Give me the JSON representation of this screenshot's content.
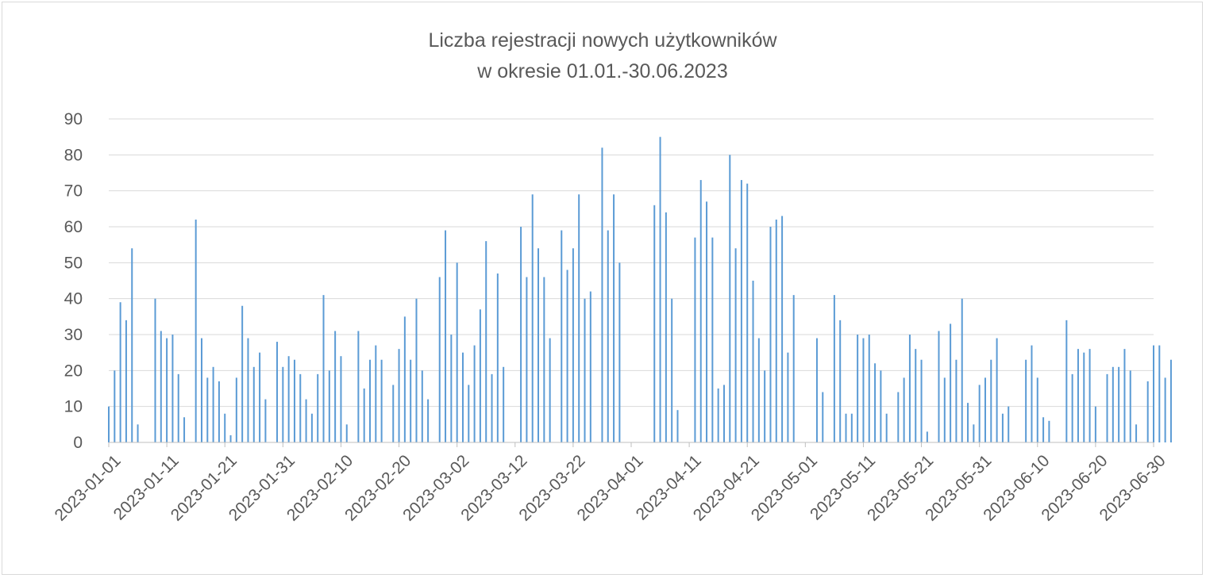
{
  "chart_data": {
    "type": "bar",
    "title": [
      "Liczba rejestracji nowych użytkowników",
      "w okresie 01.01.-30.06.2023"
    ],
    "xlabel": "",
    "ylabel": "",
    "start_date": "2023-01-01",
    "end_date": "2023-06-30",
    "ylim": [
      0,
      90
    ],
    "yticks": [
      0,
      10,
      20,
      30,
      40,
      50,
      60,
      70,
      80,
      90
    ],
    "xticks": [
      "2023-01-01",
      "2023-01-11",
      "2023-01-21",
      "2023-01-31",
      "2023-02-10",
      "2023-02-20",
      "2023-03-02",
      "2023-03-12",
      "2023-03-22",
      "2023-04-01",
      "2023-04-11",
      "2023-04-21",
      "2023-05-01",
      "2023-05-11",
      "2023-05-21",
      "2023-05-31",
      "2023-06-10",
      "2023-06-20",
      "2023-06-30"
    ],
    "grid": true,
    "legend": "none",
    "bar_color": "#5b9bd5",
    "series": [
      {
        "values": [
          10,
          20,
          39,
          34,
          54,
          5,
          0,
          0,
          40,
          31,
          29,
          30,
          19,
          7,
          0,
          62,
          29,
          18,
          21,
          17,
          8,
          2,
          18,
          38,
          29,
          21,
          25,
          12,
          0,
          28,
          21,
          24,
          23,
          19,
          12,
          8,
          19,
          41,
          20,
          31,
          24,
          5,
          0,
          31,
          15,
          23,
          27,
          23,
          0,
          16,
          26,
          35,
          23,
          40,
          20,
          12,
          0,
          46,
          59,
          30,
          50,
          25,
          16,
          27,
          37,
          56,
          19,
          47,
          21,
          0,
          0,
          60,
          46,
          69,
          54,
          46,
          29,
          0,
          59,
          48,
          54,
          69,
          40,
          42,
          0,
          82,
          59,
          69,
          50,
          0,
          0,
          0,
          0,
          0,
          66,
          85,
          64,
          40,
          9,
          0,
          0,
          57,
          73,
          67,
          57,
          15,
          16,
          80,
          54,
          73,
          72,
          45,
          29,
          20,
          60,
          62,
          63,
          25,
          41,
          0,
          0,
          0,
          29,
          14,
          0,
          41,
          34,
          8,
          8,
          30,
          29,
          30,
          22,
          20,
          8,
          0,
          14,
          18,
          30,
          26,
          23,
          3,
          0,
          31,
          18,
          33,
          23,
          40,
          11,
          5,
          16,
          18,
          23,
          29,
          8,
          10,
          0,
          0,
          23,
          27,
          18,
          7,
          6,
          0,
          0,
          34,
          19,
          26,
          25,
          26,
          10,
          0,
          19,
          21,
          21,
          26,
          20,
          5,
          0,
          17,
          27,
          27,
          18,
          23
        ]
      }
    ]
  }
}
